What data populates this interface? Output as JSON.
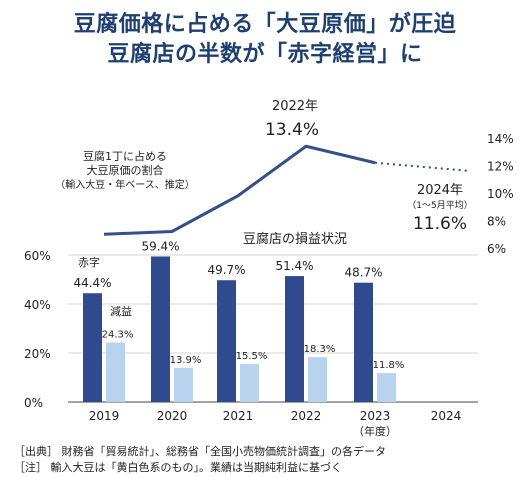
{
  "title_line1": "豆腐価格に占める「大豆原価」が圧迫",
  "title_line2": "豆腐店の半数が「赤字経営」に",
  "footnotes": {
    "source": "［出典］ 財務省「貿易統計」、総務省「全国小売物価統計調査」の各データ",
    "note": "［注］ 輸入大豆は「黄白色系のもの」。業績は当期純利益に基づく"
  },
  "colors": {
    "dark_blue": "#2f4a8f",
    "light_blue": "#b8d3ee",
    "line": "#34508a",
    "title": "#1e3f73"
  },
  "chart_data": [
    {
      "type": "line",
      "title": "豆腐1丁に占める 大豆原価の割合 （輸入大豆・年ベース、推定）",
      "title_lines": [
        "豆腐1丁に占める",
        "大豆原価の割合",
        "（輸入大豆・年ベース、推定）"
      ],
      "x": [
        "2019",
        "2020",
        "2021",
        "2022",
        "2023",
        "2024"
      ],
      "values": [
        7.0,
        7.2,
        9.8,
        13.4,
        12.2,
        11.6
      ],
      "dotted_last_segment": true,
      "ylim": [
        6,
        14
      ],
      "y_ticks": [
        "14%",
        "12%",
        "10%",
        "8%",
        "6%"
      ],
      "axis_side": "right",
      "annotations": [
        {
          "label": "2022年",
          "value": "13.4%"
        },
        {
          "label": "2024年",
          "sublabel": "（1～5月平均）",
          "value": "11.6%"
        }
      ]
    },
    {
      "type": "bar",
      "title": "豆腐店の損益状況",
      "categories": [
        "2019",
        "2020",
        "2021",
        "2022",
        "2023",
        "2024"
      ],
      "x_unit": "（年度）",
      "ylim": [
        0,
        60
      ],
      "y_ticks": [
        "60%",
        "40%",
        "20%",
        "0%"
      ],
      "series": [
        {
          "name": "赤字",
          "values": [
            44.4,
            59.4,
            49.7,
            51.4,
            48.7,
            null
          ],
          "labels": [
            "44.4%",
            "59.4%",
            "49.7%",
            "51.4%",
            "48.7%",
            ""
          ]
        },
        {
          "name": "減益",
          "values": [
            24.3,
            13.9,
            15.5,
            18.3,
            11.8,
            null
          ],
          "labels": [
            "24.3%",
            "13.9%",
            "15.5%",
            "18.3%",
            "11.8%",
            ""
          ]
        }
      ]
    }
  ]
}
